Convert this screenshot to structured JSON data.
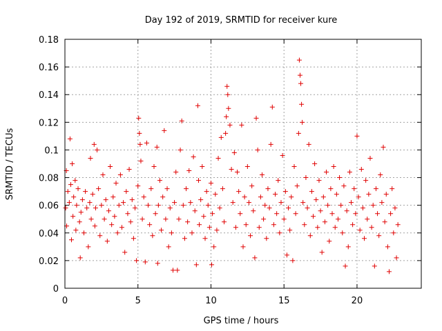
{
  "chart_data": {
    "type": "scatter",
    "title": "Day 192 of 2019, SRMTID for receiver kure",
    "xlabel": "GPS time / hours",
    "ylabel": "SRMTID / TECUs",
    "xlim": [
      0,
      24.4
    ],
    "ylim": [
      0,
      0.18
    ],
    "xticks": [
      0,
      5,
      10,
      15,
      20
    ],
    "xtick_labels": [
      "0",
      "5",
      "10",
      "15",
      "20"
    ],
    "yticks": [
      0,
      0.02,
      0.04,
      0.06,
      0.08,
      0.1,
      0.12,
      0.14,
      0.16,
      0.18
    ],
    "ytick_labels": [
      "0",
      "0.02",
      "0.04",
      "0.06",
      "0.08",
      "0.1",
      "0.12",
      "0.14",
      "0.16",
      "0.18"
    ],
    "grid": true,
    "marker": "+",
    "color": "#e00000",
    "series": [
      {
        "name": "SRMTID",
        "points": [
          [
            0.05,
            0.058
          ],
          [
            0.1,
            0.085
          ],
          [
            0.12,
            0.045
          ],
          [
            0.2,
            0.07
          ],
          [
            0.3,
            0.062
          ],
          [
            0.35,
            0.108
          ],
          [
            0.4,
            0.075
          ],
          [
            0.45,
            0.035
          ],
          [
            0.5,
            0.09
          ],
          [
            0.55,
            0.052
          ],
          [
            0.6,
            0.066
          ],
          [
            0.7,
            0.078
          ],
          [
            0.75,
            0.042
          ],
          [
            0.8,
            0.06
          ],
          [
            0.9,
            0.072
          ],
          [
            1.0,
            0.048
          ],
          [
            1.05,
            0.022
          ],
          [
            1.1,
            0.055
          ],
          [
            1.2,
            0.064
          ],
          [
            1.3,
            0.04
          ],
          [
            1.4,
            0.07
          ],
          [
            1.5,
            0.058
          ],
          [
            1.6,
            0.03
          ],
          [
            1.7,
            0.062
          ],
          [
            1.75,
            0.094
          ],
          [
            1.8,
            0.05
          ],
          [
            1.9,
            0.068
          ],
          [
            2.0,
            0.104
          ],
          [
            2.05,
            0.045
          ],
          [
            2.1,
            0.058
          ],
          [
            2.2,
            0.1
          ],
          [
            2.3,
            0.072
          ],
          [
            2.4,
            0.038
          ],
          [
            2.5,
            0.06
          ],
          [
            2.6,
            0.082
          ],
          [
            2.7,
            0.05
          ],
          [
            2.8,
            0.064
          ],
          [
            2.9,
            0.034
          ],
          [
            3.0,
            0.056
          ],
          [
            3.1,
            0.088
          ],
          [
            3.2,
            0.046
          ],
          [
            3.3,
            0.066
          ],
          [
            3.4,
            0.052
          ],
          [
            3.5,
            0.076
          ],
          [
            3.6,
            0.04
          ],
          [
            3.7,
            0.06
          ],
          [
            3.8,
            0.082
          ],
          [
            3.9,
            0.044
          ],
          [
            4.0,
            0.062
          ],
          [
            4.1,
            0.026
          ],
          [
            4.2,
            0.07
          ],
          [
            4.3,
            0.054
          ],
          [
            4.4,
            0.086
          ],
          [
            4.5,
            0.048
          ],
          [
            4.6,
            0.064
          ],
          [
            4.7,
            0.036
          ],
          [
            4.8,
            0.058
          ],
          [
            4.9,
            0.02
          ],
          [
            5.0,
            0.074
          ],
          [
            5.05,
            0.123
          ],
          [
            5.1,
            0.112
          ],
          [
            5.15,
            0.104
          ],
          [
            5.2,
            0.092
          ],
          [
            5.3,
            0.05
          ],
          [
            5.4,
            0.066
          ],
          [
            5.5,
            0.019
          ],
          [
            5.6,
            0.105
          ],
          [
            5.7,
            0.06
          ],
          [
            5.8,
            0.046
          ],
          [
            5.9,
            0.072
          ],
          [
            6.0,
            0.038
          ],
          [
            6.1,
            0.088
          ],
          [
            6.2,
            0.054
          ],
          [
            6.3,
            0.102
          ],
          [
            6.35,
            0.018
          ],
          [
            6.4,
            0.06
          ],
          [
            6.5,
            0.078
          ],
          [
            6.6,
            0.042
          ],
          [
            6.7,
            0.066
          ],
          [
            6.8,
            0.114
          ],
          [
            6.9,
            0.05
          ],
          [
            7.0,
            0.072
          ],
          [
            7.1,
            0.03
          ],
          [
            7.2,
            0.058
          ],
          [
            7.3,
            0.04
          ],
          [
            7.4,
            0.013
          ],
          [
            7.5,
            0.062
          ],
          [
            7.6,
            0.084
          ],
          [
            7.7,
            0.013
          ],
          [
            7.8,
            0.05
          ],
          [
            7.9,
            0.1
          ],
          [
            8.0,
            0.121
          ],
          [
            8.1,
            0.06
          ],
          [
            8.2,
            0.036
          ],
          [
            8.3,
            0.072
          ],
          [
            8.4,
            0.048
          ],
          [
            8.5,
            0.085
          ],
          [
            8.6,
            0.062
          ],
          [
            8.7,
            0.04
          ],
          [
            8.8,
            0.095
          ],
          [
            8.9,
            0.056
          ],
          [
            9.0,
            0.017
          ],
          [
            9.1,
            0.132
          ],
          [
            9.15,
            0.078
          ],
          [
            9.2,
            0.046
          ],
          [
            9.3,
            0.064
          ],
          [
            9.4,
            0.088
          ],
          [
            9.5,
            0.052
          ],
          [
            9.6,
            0.036
          ],
          [
            9.7,
            0.07
          ],
          [
            9.8,
            0.06
          ],
          [
            9.9,
            0.044
          ],
          [
            10.0,
            0.076
          ],
          [
            10.05,
            0.017
          ],
          [
            10.1,
            0.054
          ],
          [
            10.2,
            0.03
          ],
          [
            10.3,
            0.068
          ],
          [
            10.4,
            0.042
          ],
          [
            10.5,
            0.094
          ],
          [
            10.6,
            0.058
          ],
          [
            10.7,
            0.109
          ],
          [
            10.8,
            0.072
          ],
          [
            10.9,
            0.048
          ],
          [
            11.0,
            0.112
          ],
          [
            11.05,
            0.124
          ],
          [
            11.1,
            0.146
          ],
          [
            11.15,
            0.14
          ],
          [
            11.2,
            0.13
          ],
          [
            11.3,
            0.118
          ],
          [
            11.4,
            0.086
          ],
          [
            11.5,
            0.062
          ],
          [
            11.6,
            0.098
          ],
          [
            11.7,
            0.044
          ],
          [
            11.8,
            0.084
          ],
          [
            11.9,
            0.07
          ],
          [
            12.0,
            0.054
          ],
          [
            12.1,
            0.118
          ],
          [
            12.2,
            0.03
          ],
          [
            12.3,
            0.066
          ],
          [
            12.4,
            0.046
          ],
          [
            12.5,
            0.088
          ],
          [
            12.6,
            0.062
          ],
          [
            12.7,
            0.038
          ],
          [
            12.8,
            0.074
          ],
          [
            12.9,
            0.056
          ],
          [
            13.0,
            0.022
          ],
          [
            13.1,
            0.123
          ],
          [
            13.2,
            0.1
          ],
          [
            13.3,
            0.044
          ],
          [
            13.4,
            0.066
          ],
          [
            13.5,
            0.082
          ],
          [
            13.6,
            0.05
          ],
          [
            13.7,
            0.06
          ],
          [
            13.8,
            0.036
          ],
          [
            13.9,
            0.072
          ],
          [
            14.0,
            0.058
          ],
          [
            14.1,
            0.104
          ],
          [
            14.2,
            0.131
          ],
          [
            14.3,
            0.046
          ],
          [
            14.4,
            0.068
          ],
          [
            14.5,
            0.054
          ],
          [
            14.6,
            0.078
          ],
          [
            14.7,
            0.04
          ],
          [
            14.8,
            0.062
          ],
          [
            14.9,
            0.096
          ],
          [
            15.0,
            0.05
          ],
          [
            15.1,
            0.07
          ],
          [
            15.2,
            0.024
          ],
          [
            15.3,
            0.058
          ],
          [
            15.4,
            0.042
          ],
          [
            15.5,
            0.066
          ],
          [
            15.6,
            0.02
          ],
          [
            15.7,
            0.088
          ],
          [
            15.8,
            0.054
          ],
          [
            15.9,
            0.074
          ],
          [
            16.0,
            0.112
          ],
          [
            16.05,
            0.165
          ],
          [
            16.1,
            0.154
          ],
          [
            16.15,
            0.148
          ],
          [
            16.2,
            0.133
          ],
          [
            16.25,
            0.12
          ],
          [
            16.3,
            0.062
          ],
          [
            16.4,
            0.046
          ],
          [
            16.5,
            0.08
          ],
          [
            16.6,
            0.058
          ],
          [
            16.7,
            0.104
          ],
          [
            16.8,
            0.038
          ],
          [
            16.9,
            0.07
          ],
          [
            17.0,
            0.052
          ],
          [
            17.1,
            0.09
          ],
          [
            17.2,
            0.064
          ],
          [
            17.3,
            0.044
          ],
          [
            17.4,
            0.078
          ],
          [
            17.5,
            0.056
          ],
          [
            17.6,
            0.026
          ],
          [
            17.7,
            0.066
          ],
          [
            17.8,
            0.048
          ],
          [
            17.9,
            0.084
          ],
          [
            18.0,
            0.06
          ],
          [
            18.1,
            0.034
          ],
          [
            18.2,
            0.072
          ],
          [
            18.3,
            0.054
          ],
          [
            18.4,
            0.088
          ],
          [
            18.5,
            0.044
          ],
          [
            18.6,
            0.068
          ],
          [
            18.7,
            0.05
          ],
          [
            18.8,
            0.08
          ],
          [
            18.9,
            0.06
          ],
          [
            19.0,
            0.04
          ],
          [
            19.1,
            0.074
          ],
          [
            19.2,
            0.016
          ],
          [
            19.3,
            0.056
          ],
          [
            19.4,
            0.03
          ],
          [
            19.5,
            0.084
          ],
          [
            19.6,
            0.062
          ],
          [
            19.7,
            0.046
          ],
          [
            19.8,
            0.072
          ],
          [
            19.9,
            0.054
          ],
          [
            20.0,
            0.11
          ],
          [
            20.1,
            0.066
          ],
          [
            20.2,
            0.042
          ],
          [
            20.3,
            0.086
          ],
          [
            20.4,
            0.058
          ],
          [
            20.5,
            0.036
          ],
          [
            20.6,
            0.078
          ],
          [
            20.7,
            0.05
          ],
          [
            20.8,
            0.068
          ],
          [
            20.9,
            0.094
          ],
          [
            21.0,
            0.044
          ],
          [
            21.1,
            0.06
          ],
          [
            21.2,
            0.016
          ],
          [
            21.3,
            0.072
          ],
          [
            21.4,
            0.054
          ],
          [
            21.5,
            0.038
          ],
          [
            21.6,
            0.082
          ],
          [
            21.7,
            0.062
          ],
          [
            21.8,
            0.102
          ],
          [
            21.9,
            0.048
          ],
          [
            22.0,
            0.068
          ],
          [
            22.1,
            0.03
          ],
          [
            22.2,
            0.012
          ],
          [
            22.3,
            0.054
          ],
          [
            22.4,
            0.072
          ],
          [
            22.5,
            0.04
          ],
          [
            22.6,
            0.058
          ],
          [
            22.7,
            0.022
          ],
          [
            22.8,
            0.046
          ]
        ]
      }
    ]
  }
}
